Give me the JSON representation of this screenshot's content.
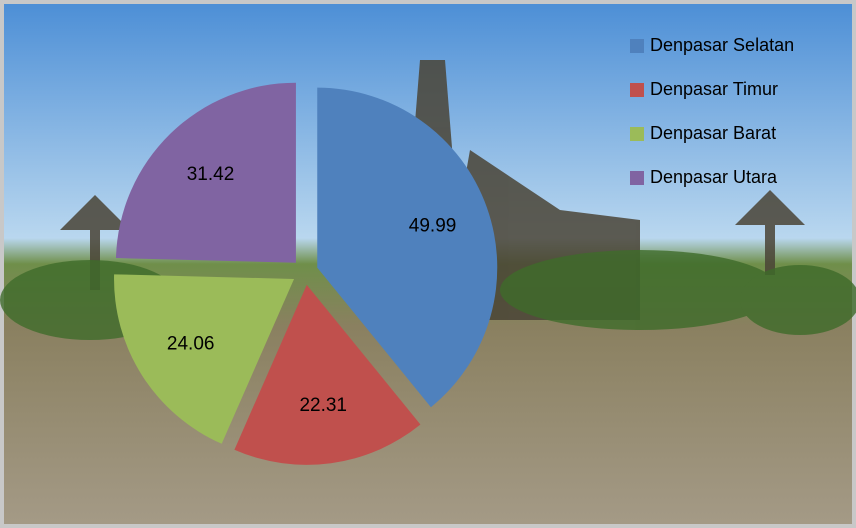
{
  "chart_data": {
    "type": "pie",
    "categories": [
      "Denpasar Selatan",
      "Denpasar Timur",
      "Denpasar Barat",
      "Denpasar Utara"
    ],
    "values": [
      49.99,
      22.31,
      24.06,
      31.42
    ],
    "colors": [
      "#4f81bd",
      "#c0504d",
      "#9bbb59",
      "#8064a2"
    ],
    "legend": "top-right"
  }
}
